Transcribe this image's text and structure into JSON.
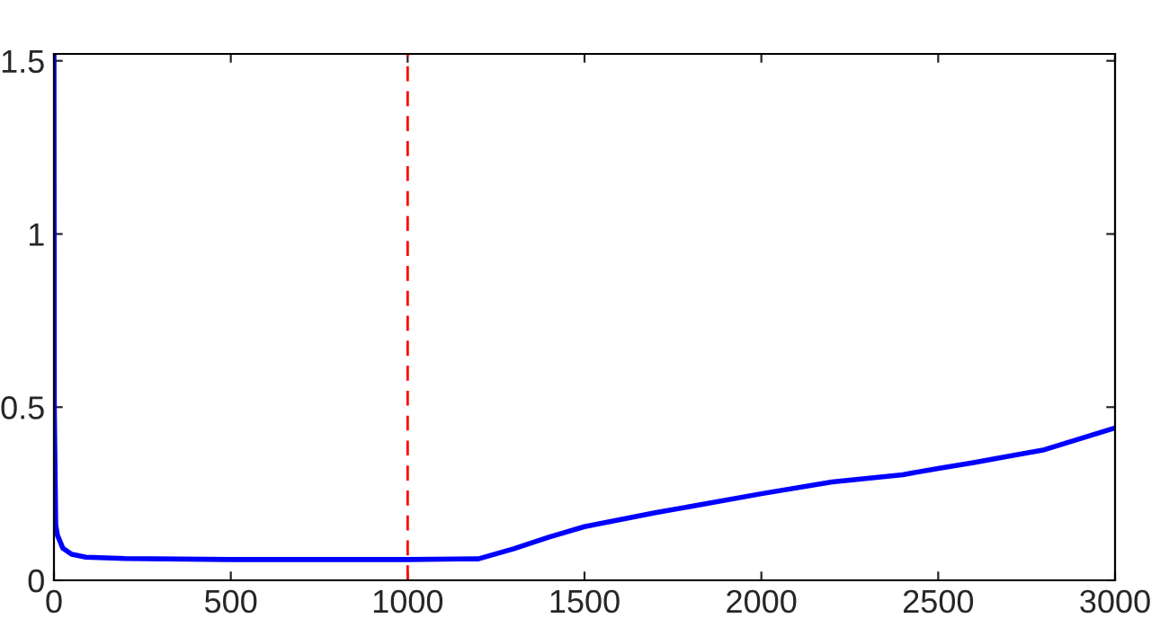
{
  "chart_data": {
    "type": "line",
    "x": [
      0,
      1,
      5,
      10,
      25,
      50,
      90,
      200,
      500,
      1000,
      1200,
      1300,
      1400,
      1500,
      1700,
      2000,
      2200,
      2400,
      2500,
      2600,
      2800,
      3000
    ],
    "series": [
      {
        "color": "#0000ff",
        "values": [
          1.52,
          0.5,
          0.16,
          0.13,
          0.093,
          0.075,
          0.067,
          0.063,
          0.06,
          0.06,
          0.062,
          0.091,
          0.125,
          0.155,
          0.195,
          0.25,
          0.284,
          0.305,
          0.323,
          0.34,
          0.377,
          0.44
        ]
      }
    ],
    "xlim": [
      0,
      3000
    ],
    "ylim": [
      0,
      1.52
    ],
    "xticks": [
      0,
      500,
      1000,
      1500,
      2000,
      2500,
      3000
    ],
    "yticks": [
      0,
      0.5,
      1,
      1.5
    ],
    "ref_lines": [
      {
        "axis": "x",
        "value": 1000,
        "color": "#ff0000",
        "line_style": "dashed"
      }
    ],
    "grid": false,
    "legend": false
  }
}
